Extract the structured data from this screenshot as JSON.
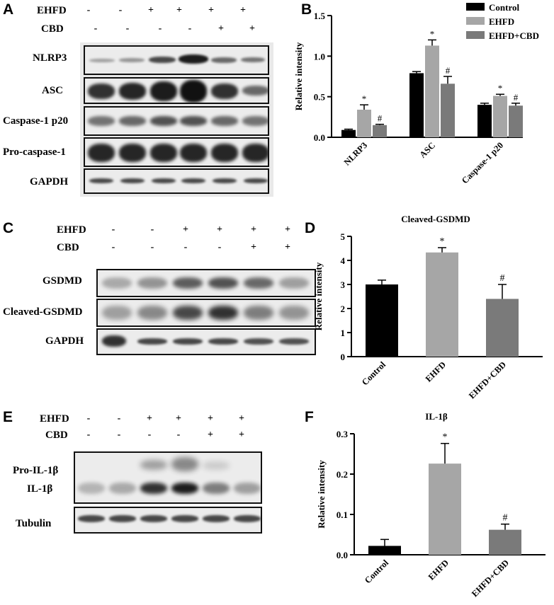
{
  "panels": {
    "A": {
      "letter": "A",
      "treatment_rows": [
        {
          "label": "EHFD",
          "signs": [
            "-",
            "-",
            "+",
            "+",
            "+",
            "+"
          ]
        },
        {
          "label": "CBD",
          "signs": [
            "-",
            "-",
            "-",
            "-",
            "+",
            "+"
          ]
        }
      ],
      "blot_labels": [
        "NLRP3",
        "ASC",
        "Caspase-1 p20",
        "Pro-caspase-1",
        "GAPDH"
      ]
    },
    "C": {
      "letter": "C",
      "treatment_rows": [
        {
          "label": "EHFD",
          "signs": [
            "-",
            "-",
            "+",
            "+",
            "+",
            "+"
          ]
        },
        {
          "label": "CBD",
          "signs": [
            "-",
            "-",
            "-",
            "-",
            "+",
            "+"
          ]
        }
      ],
      "blot_labels": [
        "GSDMD",
        "Cleaved-GSDMD",
        "GAPDH"
      ]
    },
    "E": {
      "letter": "E",
      "treatment_rows": [
        {
          "label": "EHFD",
          "signs": [
            "-",
            "-",
            "+",
            "+",
            "+",
            "+"
          ]
        },
        {
          "label": "CBD",
          "signs": [
            "-",
            "-",
            "-",
            "-",
            "+",
            "+"
          ]
        }
      ],
      "blot_labels": [
        "Pro-IL-1β",
        "IL-1β",
        "Tubulin"
      ]
    },
    "B": {
      "letter": "B"
    },
    "D": {
      "letter": "D"
    },
    "F": {
      "letter": "F"
    }
  },
  "colors": {
    "control": "#000000",
    "ehfd": "#a6a6a6",
    "ehfd_cbd": "#7a7a7a"
  },
  "chart_data": [
    {
      "id": "B",
      "type": "bar",
      "title": "",
      "ylabel": "Relative intensity",
      "ylim": [
        0,
        1.5
      ],
      "yticks": [
        "0.0",
        "0.5",
        "1.0",
        "1.5"
      ],
      "categories": [
        "NLRP3",
        "ASC",
        "Caspase-1 p20"
      ],
      "series": [
        {
          "name": "Control",
          "values": [
            0.09,
            0.79,
            0.4
          ],
          "errors": [
            0.01,
            0.02,
            0.02
          ],
          "marks": [
            "",
            "",
            ""
          ]
        },
        {
          "name": "EHFD",
          "values": [
            0.34,
            1.13,
            0.51
          ],
          "errors": [
            0.06,
            0.07,
            0.02
          ],
          "marks": [
            "*",
            "*",
            "*"
          ]
        },
        {
          "name": "EHFD+CBD",
          "values": [
            0.15,
            0.66,
            0.39
          ],
          "errors": [
            0.01,
            0.09,
            0.03
          ],
          "marks": [
            "#",
            "#",
            "#"
          ]
        }
      ],
      "legend": "top-right"
    },
    {
      "id": "D",
      "type": "bar",
      "title": "Cleaved-GSDMD",
      "ylabel": "Relative intensity",
      "ylim": [
        0,
        5
      ],
      "yticks": [
        "0",
        "1",
        "2",
        "3",
        "4",
        "5"
      ],
      "categories": [
        "Control",
        "EHFD",
        "EHFD+CBD"
      ],
      "values": [
        3.0,
        4.33,
        2.4
      ],
      "errors": [
        0.18,
        0.2,
        0.6
      ],
      "marks": [
        "",
        "*",
        "#"
      ]
    },
    {
      "id": "F",
      "type": "bar",
      "title": "IL-1β",
      "ylabel": "Relative intensity",
      "ylim": [
        0,
        0.3
      ],
      "yticks": [
        "0.0",
        "0.1",
        "0.2",
        "0.3"
      ],
      "categories": [
        "Control",
        "EHFD",
        "EHFD+CBD"
      ],
      "values": [
        0.022,
        0.226,
        0.062
      ],
      "errors": [
        0.016,
        0.05,
        0.014
      ],
      "marks": [
        "",
        "*",
        "#"
      ]
    }
  ]
}
